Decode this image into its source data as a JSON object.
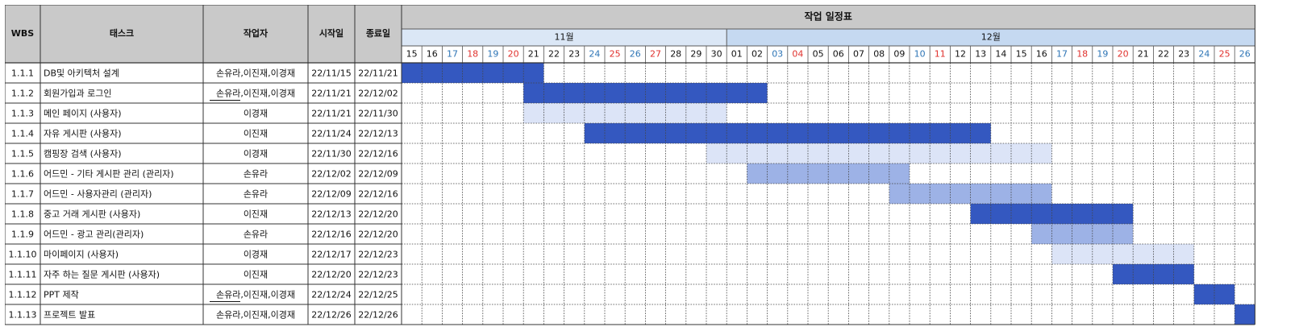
{
  "headers": {
    "wbs": "WBS",
    "task": "태스크",
    "assignee": "작업자",
    "start": "시작일",
    "end": "종료일",
    "schedule_title": "작업 일정표"
  },
  "months": [
    {
      "label": "11월",
      "days": [
        "15",
        "16",
        "17",
        "18",
        "19",
        "20",
        "21",
        "22",
        "23",
        "24",
        "25",
        "26",
        "27",
        "28",
        "29",
        "30"
      ]
    },
    {
      "label": "12월",
      "days": [
        "01",
        "02",
        "03",
        "04",
        "05",
        "06",
        "07",
        "08",
        "09",
        "10",
        "11",
        "12",
        "13",
        "14",
        "15",
        "16",
        "17",
        "18",
        "19",
        "20",
        "21",
        "22",
        "23",
        "24",
        "25",
        "26"
      ]
    }
  ],
  "saturday_color": "#2e75b6",
  "sunday_color": "#e0312d",
  "weekend_days": {
    "saturday": [
      "19",
      "26",
      "03",
      "10",
      "17",
      "24"
    ],
    "sunday": [
      "20",
      "27",
      "04",
      "11",
      "18",
      "25"
    ]
  },
  "colors": {
    "header_bg": "#c9c9c9",
    "month_bg": "#dbe7f6",
    "month2_bg": "#c5d9f1",
    "bar_dark": "#3458c0",
    "bar_mid": "#9db2e6",
    "bar_light": "#dce4f7"
  },
  "tasks": [
    {
      "wbs": "1.1.1",
      "name": "DB및 아키텍처 설계",
      "assignee": "손유라,이진재,이경재",
      "start": "22/11/15",
      "end": "22/11/21",
      "bar_start": 0,
      "bar_days": 7,
      "shade": "dark",
      "underline": false
    },
    {
      "wbs": "1.1.2",
      "name": "회원가입과 로그인",
      "assignee": "손유라,이진재,이경재",
      "start": "22/11/21",
      "end": "22/12/02",
      "bar_start": 6,
      "bar_days": 12,
      "shade": "dark",
      "underline": true
    },
    {
      "wbs": "1.1.3",
      "name": "메인 페이지 (사용자)",
      "assignee": "이경재",
      "start": "22/11/21",
      "end": "22/11/30",
      "bar_start": 6,
      "bar_days": 10,
      "shade": "light",
      "underline": false
    },
    {
      "wbs": "1.1.4",
      "name": "자유 게시판 (사용자)",
      "assignee": "이진재",
      "start": "22/11/24",
      "end": "22/12/13",
      "bar_start": 9,
      "bar_days": 20,
      "shade": "dark",
      "underline": false
    },
    {
      "wbs": "1.1.5",
      "name": "캠핑장 검색 (사용자)",
      "assignee": "이경재",
      "start": "22/11/30",
      "end": "22/12/16",
      "bar_start": 15,
      "bar_days": 17,
      "shade": "light",
      "underline": false
    },
    {
      "wbs": "1.1.6",
      "name": "어드민 - 기타 게시판 관리 (관리자)",
      "assignee": "손유라",
      "start": "22/12/02",
      "end": "22/12/09",
      "bar_start": 17,
      "bar_days": 8,
      "shade": "mid",
      "underline": false
    },
    {
      "wbs": "1.1.7",
      "name": "어드민 - 사용자관리 (관리자)",
      "assignee": "손유라",
      "start": "22/12/09",
      "end": "22/12/16",
      "bar_start": 24,
      "bar_days": 8,
      "shade": "mid",
      "underline": false
    },
    {
      "wbs": "1.1.8",
      "name": "중고 거래 게시판 (사용자)",
      "assignee": "이진재",
      "start": "22/12/13",
      "end": "22/12/20",
      "bar_start": 28,
      "bar_days": 8,
      "shade": "dark",
      "underline": false
    },
    {
      "wbs": "1.1.9",
      "name": "어드민 - 광고 관리(관리자)",
      "assignee": "손유라",
      "start": "22/12/16",
      "end": "22/12/20",
      "bar_start": 31,
      "bar_days": 5,
      "shade": "mid",
      "underline": false
    },
    {
      "wbs": "1.1.10",
      "name": "마이페이지 (사용자)",
      "assignee": "이경재",
      "start": "22/12/17",
      "end": "22/12/23",
      "bar_start": 32,
      "bar_days": 7,
      "shade": "light",
      "underline": false
    },
    {
      "wbs": "1.1.11",
      "name": "자주 하는 질문 게시판 (사용자)",
      "assignee": "이진재",
      "start": "22/12/20",
      "end": "22/12/23",
      "bar_start": 35,
      "bar_days": 4,
      "shade": "dark",
      "underline": false
    },
    {
      "wbs": "1.1.12",
      "name": "PPT 제작",
      "assignee": "손유라,이진재,이경재",
      "start": "22/12/24",
      "end": "22/12/25",
      "bar_start": 39,
      "bar_days": 2,
      "shade": "dark",
      "underline": true
    },
    {
      "wbs": "1.1.13",
      "name": "프로젝트 발표",
      "assignee": "손유라,이진재,이경재",
      "start": "22/12/26",
      "end": "22/12/26",
      "bar_start": 41,
      "bar_days": 1,
      "shade": "dark",
      "underline": false
    }
  ]
}
